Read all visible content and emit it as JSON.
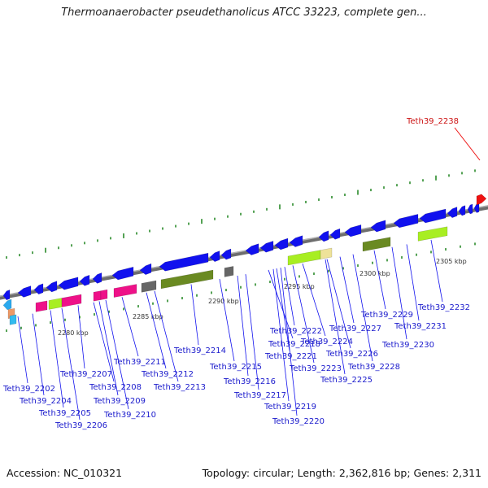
{
  "header": {
    "title": "Thermoanaerobacter pseudethanolicus ATCC 33223, complete gen..."
  },
  "footer": {
    "accession_text": "Accession: NC_010321",
    "topology_text": "Topology: circular; Length: 2,362,816 bp; Genes: 2,311"
  },
  "colors": {
    "cds": "#1111ee",
    "highlight": "#ee1111",
    "label": "#1a1acc",
    "tick": "#2a8a2a",
    "backbone": "#8a8a8a"
  },
  "kbp_labels": [
    "2280 kbp",
    "2285 kbp",
    "2290 kbp",
    "2295 kbp",
    "2300 kbp",
    "2305 kbp"
  ],
  "highlight_gene": "Teth39_2238",
  "gene_labels": [
    "Teth39_2202",
    "Teth39_2204",
    "Teth39_2205",
    "Teth39_2206",
    "Teth39_2207",
    "Teth39_2208",
    "Teth39_2209",
    "Teth39_2210",
    "Teth39_2211",
    "Teth39_2212",
    "Teth39_2213",
    "Teth39_2214",
    "Teth39_2215",
    "Teth39_2216",
    "Teth39_2217",
    "Teth39_2218",
    "Teth39_2219",
    "Teth39_2220",
    "Teth39_2221",
    "Teth39_2222",
    "Teth39_2223",
    "Teth39_2224",
    "Teth39_2225",
    "Teth39_2226",
    "Teth39_2227",
    "Teth39_2228",
    "Teth39_2229",
    "Teth39_2230",
    "Teth39_2231",
    "Teth39_2232"
  ]
}
